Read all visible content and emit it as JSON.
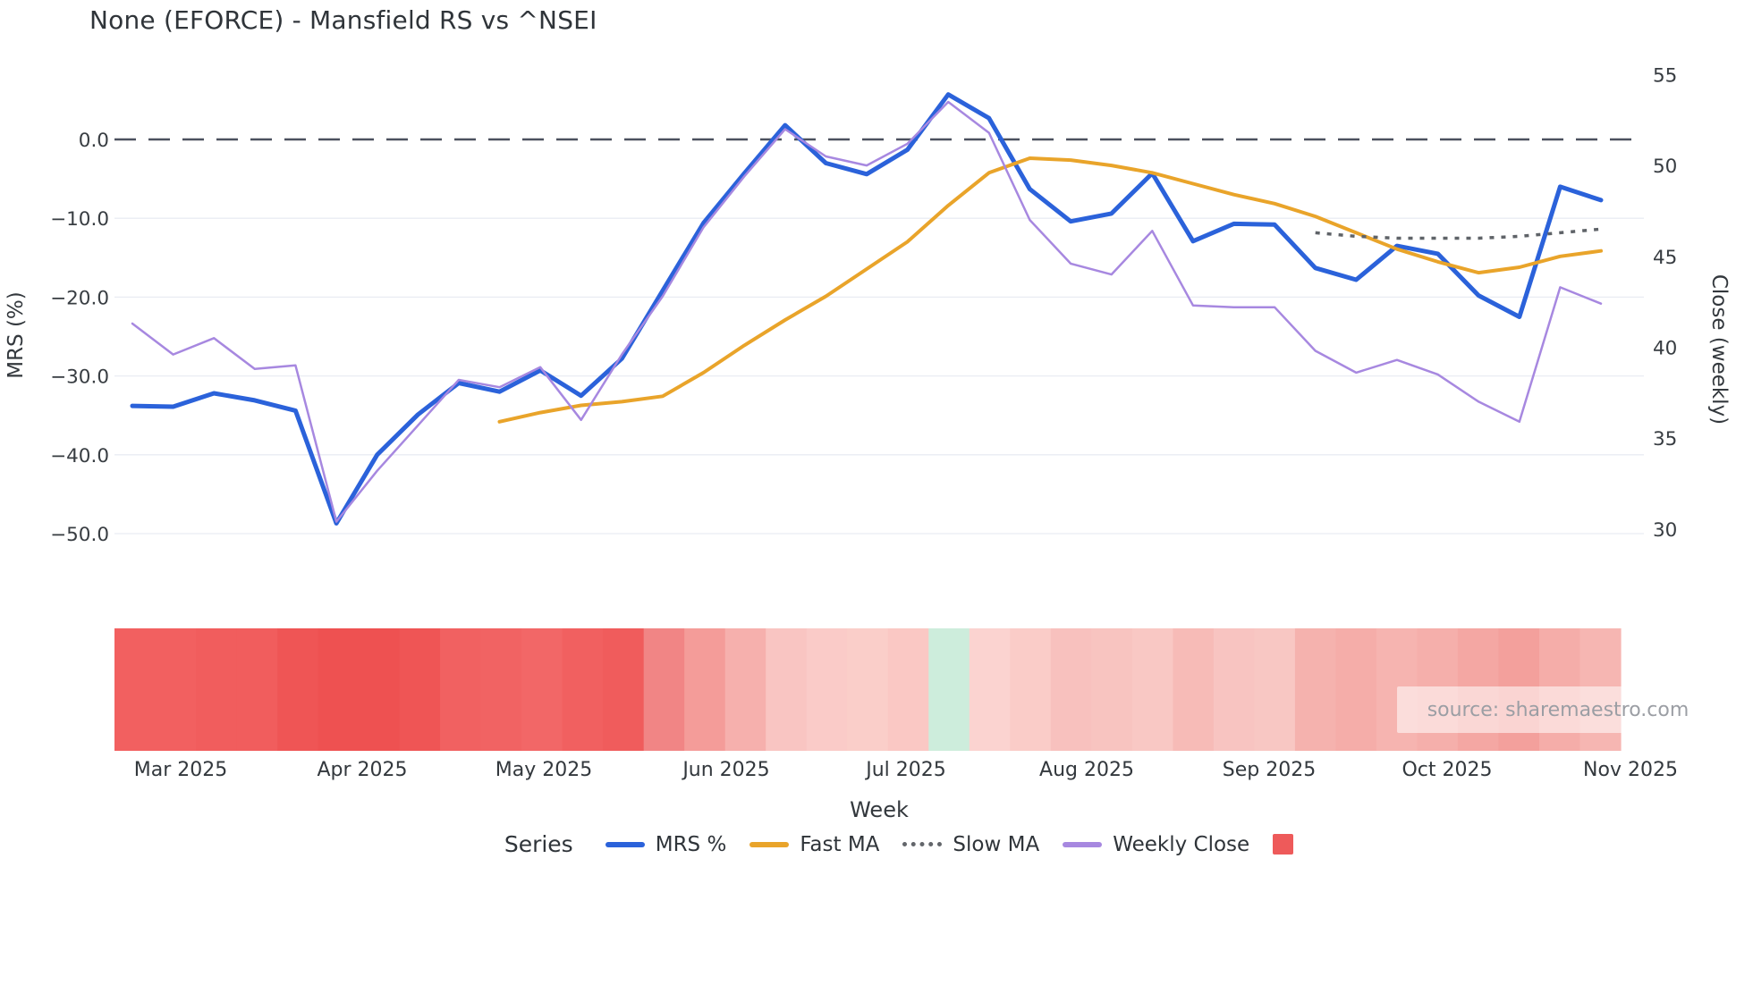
{
  "title": "None (EFORCE) - Mansfield RS vs ^NSEI",
  "source_note": "source: sharemaestro.com",
  "axes": {
    "left": {
      "title": "MRS (%)",
      "tick_labels": [
        "0.0",
        "−10.0",
        "−20.0",
        "−30.0",
        "−40.0",
        "−50.0"
      ],
      "tick_values": [
        0,
        -10,
        -20,
        -30,
        -40,
        -50
      ]
    },
    "right": {
      "title": "Close (weekly)",
      "tick_labels": [
        "55",
        "50",
        "45",
        "40",
        "35",
        "30"
      ],
      "tick_values": [
        55,
        50,
        45,
        40,
        35,
        30
      ]
    },
    "x": {
      "title": "Week",
      "tick_labels": [
        "Mar 2025",
        "Apr 2025",
        "May 2025",
        "Jun 2025",
        "Jul 2025",
        "Aug 2025",
        "Sep 2025",
        "Oct 2025",
        "Nov 2025"
      ]
    }
  },
  "legend": {
    "label": "Series",
    "items": [
      {
        "label": "MRS %",
        "swatch": "line",
        "color": "#2b62da"
      },
      {
        "label": "Fast MA",
        "swatch": "line",
        "color": "#e9a42a"
      },
      {
        "label": "Slow MA",
        "swatch": "dotted-line",
        "color": "#63666b"
      },
      {
        "label": "Weekly Close",
        "swatch": "line",
        "color": "#a788e0"
      },
      {
        "label": "",
        "swatch": "square",
        "color": "#ee5a5a"
      }
    ]
  },
  "chart_data": {
    "type": "line",
    "title": "None (EFORCE) - Mansfield RS vs ^NSEI",
    "xlabel": "Week",
    "ylabel_left": "MRS (%)",
    "ylabel_right": "Close (weekly)",
    "left_ylim": [
      -54,
      8
    ],
    "right_ylim": [
      27,
      56
    ],
    "grid": true,
    "legend_position": "bottom",
    "x_weeks": [
      "2025-02-24",
      "2025-03-03",
      "2025-03-10",
      "2025-03-17",
      "2025-03-24",
      "2025-03-31",
      "2025-04-07",
      "2025-04-14",
      "2025-04-21",
      "2025-04-28",
      "2025-05-05",
      "2025-05-12",
      "2025-05-19",
      "2025-05-26",
      "2025-06-02",
      "2025-06-09",
      "2025-06-16",
      "2025-06-23",
      "2025-06-30",
      "2025-07-07",
      "2025-07-14",
      "2025-07-21",
      "2025-07-28",
      "2025-08-04",
      "2025-08-11",
      "2025-08-18",
      "2025-08-25",
      "2025-09-01",
      "2025-09-08",
      "2025-09-15",
      "2025-09-22",
      "2025-09-29",
      "2025-10-06",
      "2025-10-13",
      "2025-10-20",
      "2025-10-27",
      "2025-11-03"
    ],
    "zero_line": {
      "axis": "left",
      "value": 0,
      "style": "dashed",
      "color": "#4b515e"
    },
    "series": [
      {
        "name": "MRS %",
        "axis": "left",
        "color": "#2b62da",
        "width": 5,
        "style": "solid",
        "values": [
          -33.8,
          -33.9,
          -32.2,
          -33.1,
          -34.4,
          -48.7,
          -40.0,
          -34.9,
          -30.9,
          -32.0,
          -29.3,
          -32.5,
          -27.8,
          -19.2,
          -10.6,
          -4.3,
          1.8,
          -3.0,
          -4.4,
          -1.3,
          5.7,
          2.7,
          -6.3,
          -10.4,
          -9.4,
          -4.3,
          -12.9,
          -10.7,
          -10.8,
          -16.3,
          -17.8,
          -13.5,
          -14.5,
          -19.8,
          -22.5,
          -6.0,
          -7.7
        ]
      },
      {
        "name": "Fast MA",
        "axis": "right",
        "color": "#e9a42a",
        "width": 4,
        "style": "solid",
        "values": [
          null,
          null,
          null,
          null,
          null,
          null,
          null,
          null,
          null,
          35.9,
          36.4,
          36.8,
          37.0,
          37.3,
          38.6,
          40.1,
          41.5,
          42.8,
          44.3,
          45.8,
          47.8,
          49.6,
          50.4,
          50.3,
          50.0,
          49.6,
          49.0,
          48.4,
          47.9,
          47.2,
          46.3,
          45.4,
          44.7,
          44.1,
          44.4,
          45.0,
          45.3
        ]
      },
      {
        "name": "Slow MA",
        "axis": "right",
        "color": "#5f6368",
        "width": 3.5,
        "style": "dotted",
        "values": [
          null,
          null,
          null,
          null,
          null,
          null,
          null,
          null,
          null,
          null,
          null,
          null,
          null,
          null,
          null,
          null,
          null,
          null,
          null,
          null,
          null,
          null,
          null,
          null,
          null,
          null,
          null,
          null,
          null,
          46.3,
          46.1,
          46.0,
          46.0,
          46.0,
          46.1,
          46.3,
          46.5
        ]
      },
      {
        "name": "Weekly Close",
        "axis": "right",
        "color": "#a788e0",
        "width": 2.5,
        "style": "solid",
        "values": [
          41.3,
          39.6,
          40.5,
          38.8,
          39.0,
          30.4,
          33.2,
          35.7,
          38.2,
          37.8,
          38.9,
          36.0,
          39.6,
          42.8,
          46.6,
          49.4,
          52.0,
          50.5,
          50.0,
          51.2,
          53.5,
          51.8,
          47.0,
          44.6,
          44.0,
          46.4,
          42.3,
          42.2,
          42.2,
          39.8,
          38.6,
          39.3,
          38.5,
          37.0,
          35.9,
          43.3,
          42.4
        ]
      }
    ],
    "heatmap_strip": {
      "colors": [
        "#f26060",
        "#f26060",
        "#f15d5d",
        "#f15d5d",
        "#ef5555",
        "#ee5151",
        "#ee5151",
        "#ef5555",
        "#f16161",
        "#f16363",
        "#f26767",
        "#f16060",
        "#f05c5c",
        "#f18585",
        "#f49c99",
        "#f6b0ad",
        "#f9c5c2",
        "#facbc8",
        "#facec9",
        "#fac8c4",
        "#cdeddc",
        "#fbd3d0",
        "#faccc8",
        "#f8c1be",
        "#f8c4c0",
        "#f9c8c4",
        "#f7bbb7",
        "#f8c4c1",
        "#f8c7c3",
        "#f5b2ae",
        "#f5ada9",
        "#f6b4b0",
        "#f5afab",
        "#f4a7a3",
        "#f3a09c",
        "#f5ada9",
        "#f6b6b2"
      ]
    }
  }
}
